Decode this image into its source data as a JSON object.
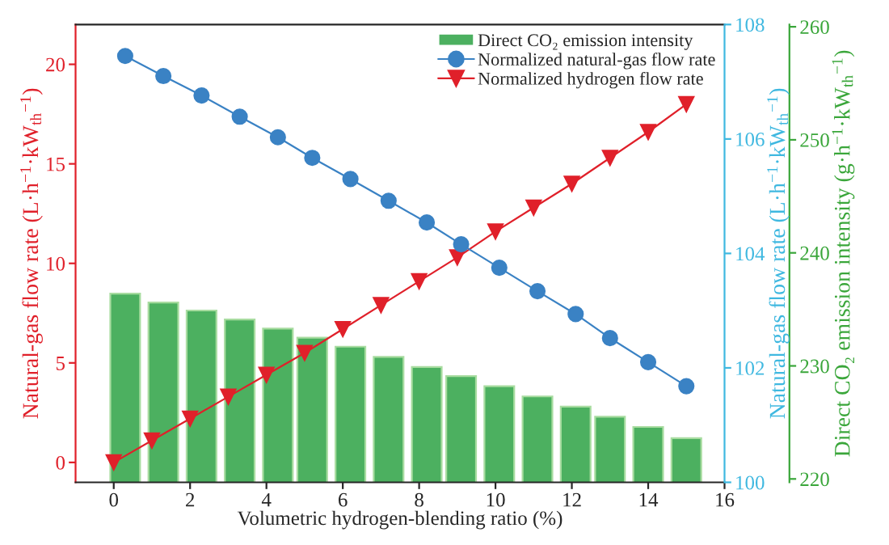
{
  "chart_data": {
    "type": "bar",
    "xlabel": "Volumetric hydrogen-blending ratio (%)",
    "ylabel": "Natural-gas flow rate (L·h$^{−1}$·kW$_{th}$$^{−1}$)",
    "y2label": "Natural-gas flow rate (L·h$^{−1}$·kW$_{th}$$^{−1}$)",
    "y3label": "Direct CO₂ emission intensity (g·h$^{−1}$·kW$_{th}$$^{−1}$)",
    "xlim": [
      -1,
      16
    ],
    "xticks": [
      0,
      2,
      4,
      6,
      8,
      10,
      12,
      14,
      16
    ],
    "ylim": [
      -1,
      22
    ],
    "yticks": [
      0,
      5,
      10,
      15,
      20
    ],
    "y2lim": [
      100,
      108
    ],
    "y2ticks": [
      100,
      102,
      104,
      106,
      108
    ],
    "y3lim": [
      219.7,
      260.2
    ],
    "y3ticks": [
      220,
      230,
      240,
      250,
      260
    ],
    "legend": "top right",
    "grid": false,
    "series": [
      {
        "name": "Direct CO₂ emission intensity",
        "axis": "y3",
        "color": "#4cb060",
        "x": [
          0.3,
          1.3,
          2.3,
          3.3,
          4.3,
          5.2,
          6.2,
          7.2,
          8.2,
          9.1,
          10.1,
          11.1,
          12.1,
          13.0,
          14.0,
          15.0
        ],
        "values": [
          236.4,
          235.6,
          234.9,
          234.1,
          233.3,
          232.5,
          231.7,
          230.8,
          229.9,
          229.1,
          228.2,
          227.3,
          226.4,
          225.5,
          224.6,
          223.6
        ]
      },
      {
        "name": "Normalized natural-gas flow rate",
        "type": "line",
        "axis": "y2",
        "color": "#3a82c4",
        "marker": "circle",
        "x": [
          0.3,
          1.3,
          2.3,
          3.3,
          4.3,
          5.2,
          6.2,
          7.2,
          8.2,
          9.1,
          10.1,
          11.1,
          12.1,
          13.0,
          14.0,
          15.0
        ],
        "values": [
          107.45,
          107.1,
          106.76,
          106.39,
          106.03,
          105.67,
          105.3,
          104.92,
          104.54,
          104.16,
          103.75,
          103.34,
          102.94,
          102.52,
          102.1,
          101.68
        ]
      },
      {
        "name": "Normalized hydrogen flow rate",
        "type": "line",
        "axis": "y",
        "color": "#e0202a",
        "marker": "triangle",
        "x": [
          0,
          1,
          2,
          3,
          4,
          5,
          6,
          7,
          8,
          9,
          10,
          11,
          12,
          13,
          14,
          15
        ],
        "values": [
          0,
          1.1,
          2.2,
          3.3,
          4.4,
          5.5,
          6.7,
          7.9,
          9.1,
          10.3,
          11.6,
          12.8,
          14.0,
          15.3,
          16.6,
          18.0
        ]
      }
    ]
  }
}
